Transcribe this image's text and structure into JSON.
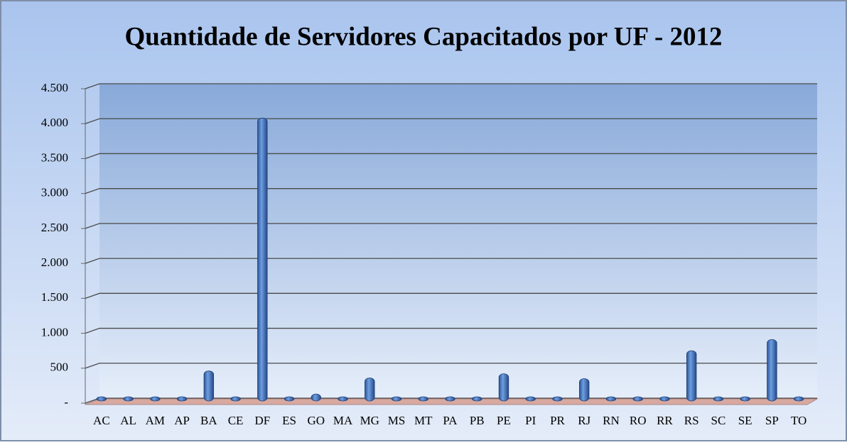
{
  "chart_data": {
    "type": "bar",
    "title": "Quantidade de Servidores Capacitados por UF - 2012",
    "categories": [
      "AC",
      "AL",
      "AM",
      "AP",
      "BA",
      "CE",
      "DF",
      "ES",
      "GO",
      "MA",
      "MG",
      "MS",
      "MT",
      "PA",
      "PB",
      "PE",
      "PI",
      "PR",
      "RJ",
      "RN",
      "RO",
      "RR",
      "RS",
      "SC",
      "SE",
      "SP",
      "TO"
    ],
    "values": [
      40,
      5,
      5,
      5,
      430,
      5,
      4050,
      5,
      100,
      30,
      330,
      5,
      5,
      5,
      20,
      390,
      5,
      10,
      320,
      50,
      5,
      25,
      720,
      60,
      5,
      880,
      30
    ],
    "color": "#3f73c0",
    "ylim": [
      0,
      4500
    ],
    "yticks": [
      {
        "value": 0,
        "label": "-"
      },
      500,
      {
        "value": 1000,
        "label": "1.000"
      },
      {
        "value": 1500,
        "label": "1.500"
      },
      {
        "value": 2000,
        "label": "2.000"
      },
      {
        "value": 2500,
        "label": "2.500"
      },
      {
        "value": 3000,
        "label": "3.000"
      },
      {
        "value": 3500,
        "label": "3.500"
      },
      {
        "value": 4000,
        "label": "4.000"
      },
      {
        "value": 4500,
        "label": "4.500"
      }
    ],
    "grid": true
  }
}
